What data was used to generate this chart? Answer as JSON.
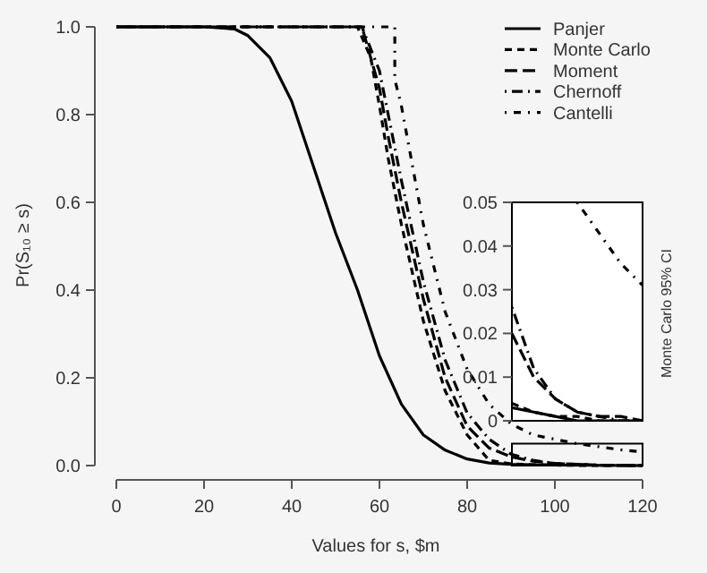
{
  "chart_data": [
    {
      "type": "line",
      "xlabel": "Values for s, $m",
      "ylabel": "Pr(S₁₀ ≥ s)",
      "xlim": [
        0,
        120
      ],
      "ylim": [
        0,
        1
      ],
      "xticks": [
        0,
        20,
        40,
        60,
        80,
        100,
        120
      ],
      "yticks": [
        {
          "value": 0,
          "label": "0.0"
        },
        {
          "value": 0.2,
          "label": "0.2"
        },
        {
          "value": 0.4,
          "label": "0.4"
        },
        {
          "value": 0.6,
          "label": "0.6"
        },
        {
          "value": 0.8,
          "label": "0.8"
        },
        {
          "value": 1,
          "label": "1.0"
        }
      ],
      "grid": false,
      "legend": "top right",
      "series": [
        {
          "name": "Panjer",
          "color": "#000000",
          "line_style": "solid",
          "x": [
            0,
            20,
            27,
            30,
            35,
            40,
            45,
            50,
            55,
            60,
            65,
            70,
            75,
            80,
            85,
            90,
            100,
            120
          ],
          "values": [
            1,
            1,
            0.995,
            0.98,
            0.93,
            0.83,
            0.68,
            0.53,
            0.4,
            0.25,
            0.14,
            0.07,
            0.035,
            0.015,
            0.006,
            0.003,
            0.001,
            0
          ]
        },
        {
          "name": "Monte Carlo",
          "color": "#000000",
          "line_style": "dashed",
          "x": [
            0,
            55,
            58,
            60,
            62,
            65,
            70,
            75,
            80,
            85,
            90,
            95,
            100,
            110,
            120
          ],
          "values": [
            1,
            1,
            0.93,
            0.82,
            0.7,
            0.55,
            0.33,
            0.17,
            0.07,
            0.012,
            0.004,
            0.002,
            0.001,
            0,
            0
          ]
        },
        {
          "name": "Moment",
          "color": "#000000",
          "line_style": "longdash",
          "x": [
            0,
            56,
            60,
            62,
            65,
            70,
            75,
            80,
            85,
            90,
            95,
            100,
            110,
            120
          ],
          "values": [
            1,
            1,
            0.86,
            0.75,
            0.6,
            0.38,
            0.2,
            0.09,
            0.04,
            0.02,
            0.01,
            0.005,
            0.001,
            0
          ]
        },
        {
          "name": "Chernoff",
          "color": "#000000",
          "line_style": "dashdot",
          "x": [
            0,
            56,
            60,
            65,
            70,
            75,
            80,
            85,
            90,
            95,
            100,
            110,
            120
          ],
          "values": [
            1,
            1,
            0.9,
            0.65,
            0.42,
            0.24,
            0.12,
            0.06,
            0.026,
            0.012,
            0.005,
            0.001,
            0
          ]
        },
        {
          "name": "Cantelli",
          "color": "#000000",
          "line_style": "dotdash",
          "x": [
            0,
            63.5,
            63.5,
            65,
            70,
            75,
            80,
            85,
            90,
            95,
            100,
            105,
            110,
            115,
            120
          ],
          "values": [
            1,
            1,
            0.88,
            0.82,
            0.55,
            0.35,
            0.22,
            0.14,
            0.095,
            0.07,
            0.06,
            0.05,
            0.043,
            0.036,
            0.031
          ]
        }
      ]
    },
    {
      "type": "line",
      "categories": [
        null,
        null,
        null,
        null,
        null,
        null,
        null
      ],
      "ylim": [
        0,
        0.05
      ],
      "yticks": [
        0,
        0.01,
        0.02,
        0.03,
        0.04,
        0.05
      ],
      "tick_labels": "y",
      "annotations": [
        "Monte Carlo 95% CI"
      ],
      "series": [
        {
          "color": "#000000",
          "line_style": "solid",
          "values": [
            0.003,
            0.002,
            0.001,
            0,
            0,
            0,
            0
          ]
        },
        {
          "color": "#000000",
          "line_style": "dashed",
          "values": [
            0.004,
            0.002,
            0.001,
            0.001,
            0,
            0,
            0
          ]
        },
        {
          "color": "#000000",
          "line_style": "longdash",
          "values": [
            0.02,
            0.01,
            0.005,
            0.002,
            0.001,
            0.001,
            0
          ]
        },
        {
          "color": "#000000",
          "line_style": "dashdot",
          "values": [
            0.026,
            0.012,
            0.005,
            0.002,
            0.001,
            0,
            0
          ]
        },
        {
          "color": "#000000",
          "line_style": "dotdash",
          "values": [
            null,
            null,
            null,
            0.05,
            0.043,
            0.036,
            0.031
          ]
        }
      ]
    }
  ]
}
